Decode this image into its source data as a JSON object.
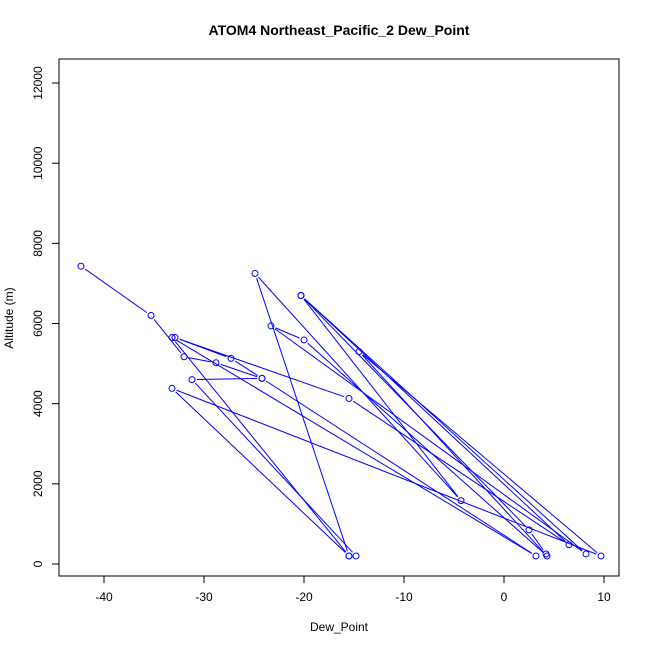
{
  "chart_data": {
    "type": "scatter",
    "title": "ATOM4 Northeast_Pacific_2 Dew_Point",
    "xlabel": "Dew_Point",
    "ylabel": "Altitude (m)",
    "xlim": [
      -44.5,
      11.5
    ],
    "ylim": [
      -300,
      12600
    ],
    "x_ticks": [
      -40,
      -30,
      -20,
      -10,
      0,
      10
    ],
    "y_ticks": [
      0,
      2000,
      4000,
      6000,
      8000,
      10000,
      12000
    ],
    "grid": false,
    "style": {
      "color": "#0000ff",
      "marker": "open-circle",
      "connected": true
    },
    "series": [
      {
        "x": [
          -42.3,
          -35.3,
          -32.0,
          -28.8,
          -24.2,
          3.2,
          -33.2,
          -15.5,
          -14.8,
          -31.2,
          -24.2,
          -27.3,
          -32.9,
          -15.5,
          6.5,
          -20.3,
          8.2,
          -23.3,
          -20.0,
          4.3,
          -14.5,
          9.7,
          -33.2,
          -15.5,
          -24.9,
          -4.3,
          -20.3,
          2.5,
          4.2
        ],
        "y": [
          7430,
          6200,
          5170,
          5020,
          4630,
          200,
          5650,
          200,
          200,
          4600,
          4630,
          5130,
          5650,
          4130,
          480,
          6700,
          250,
          5940,
          5590,
          200,
          5300,
          200,
          4380,
          200,
          7250,
          1580,
          6700,
          850,
          250
        ]
      }
    ]
  }
}
